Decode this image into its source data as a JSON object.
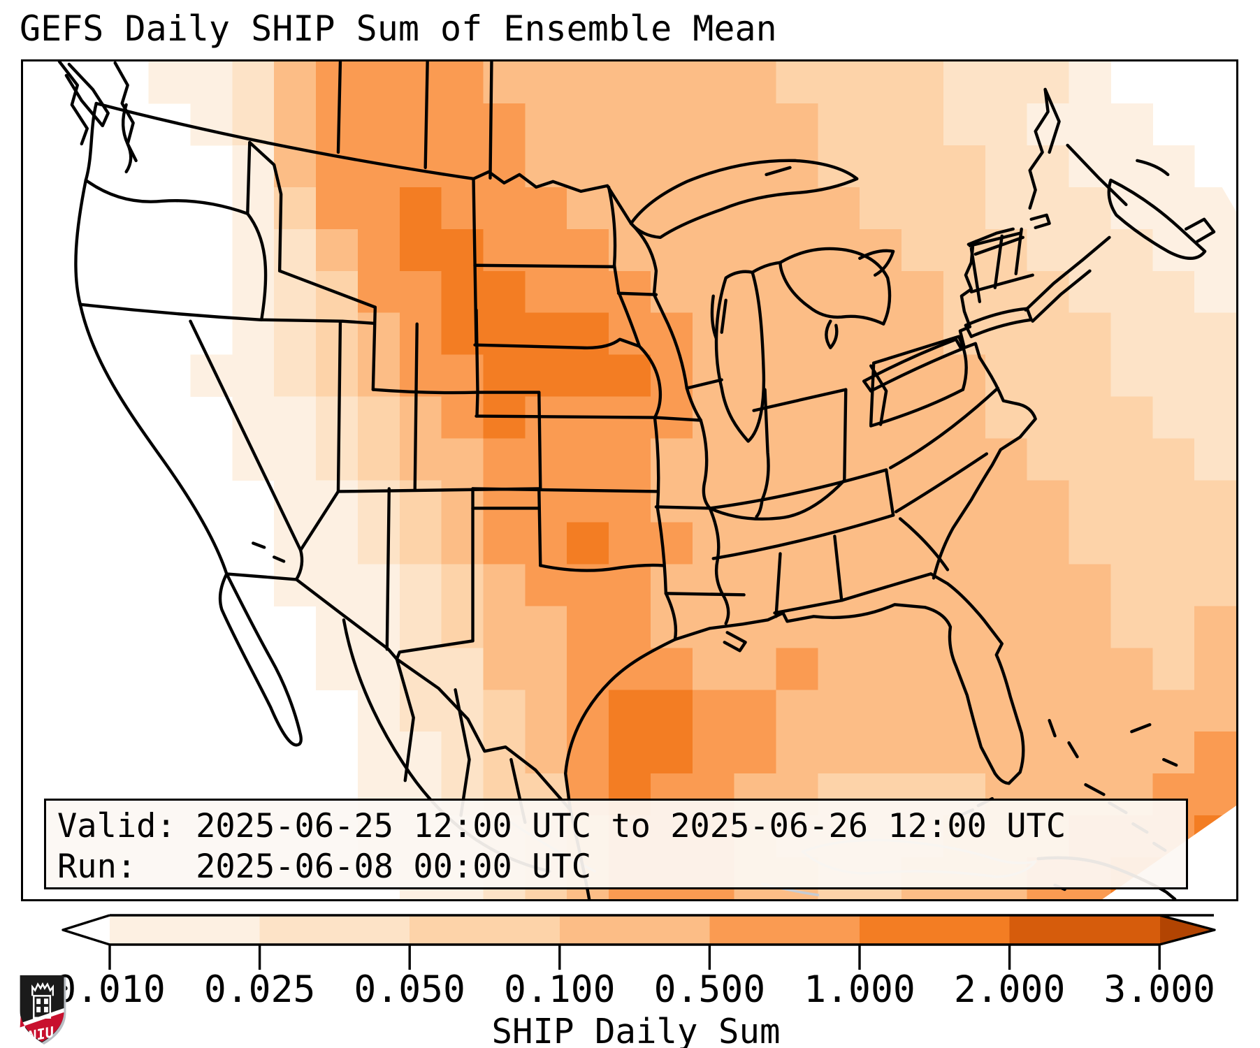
{
  "title": "GEFS Daily SHIP Sum of Ensemble Mean",
  "info_box": {
    "valid_line": "Valid: 2025-06-25 12:00 UTC to 2025-06-26 12:00 UTC",
    "run_line": "Run:   2025-06-08 00:00 UTC"
  },
  "colorbar": {
    "label": "SHIP Daily Sum",
    "tick_labels": [
      "0.010",
      "0.025",
      "0.050",
      "0.100",
      "0.500",
      "1.000",
      "2.000",
      "3.000"
    ],
    "segment_colors": [
      "#fdf0e2",
      "#fde3c7",
      "#fdd3a9",
      "#fcbd86",
      "#fa9b52",
      "#f37d23",
      "#d65c0c"
    ],
    "under_arrow_color": "#ffffff",
    "over_arrow_color": "#b24402",
    "outline_color": "#000000"
  },
  "logo": {
    "text": "NIU",
    "shield_color": "#1b1b1b",
    "band_color": "#c8102e"
  },
  "chart_data": {
    "type": "heatmap",
    "title": "GEFS Daily SHIP Sum of Ensemble Mean",
    "colorbar_label": "SHIP Daily Sum",
    "valid_from": "2025-06-25 12:00 UTC",
    "valid_to": "2025-06-26 12:00 UTC",
    "run": "2025-06-08 00:00 UTC",
    "region": "CONUS",
    "levels": [
      0.01,
      0.025,
      0.05,
      0.1,
      0.5,
      1.0,
      2.0,
      3.0
    ],
    "palette": [
      "#ffffff",
      "#fdf0e2",
      "#fde3c7",
      "#fdd3a9",
      "#fcbd86",
      "#fa9b52",
      "#f37d23",
      "#d65c0c"
    ],
    "over_color": "#b24402",
    "legend_note": "cell codes 0-7: 0 = below 0.010 (white), 1 = 0.010-0.025, 2 = 0.025-0.050, 3 = 0.050-0.100, 4 = 0.100-0.500, 5 = 0.500-1.000, 6 = 1.000-2.000, 7 = 2.000-3.000",
    "grid": {
      "cols": 29,
      "rows": 20,
      "rows_data": [
        "00011245555444444433332221000",
        "00001245555544444443332211100",
        "00000145555544444443333221110",
        "00000135565554444444333222111",
        "00000124566555444444433322211",
        "00000123556655544444443332221",
        "00000123456666554444443333222",
        "00001123455666654444444333222",
        "00000112345655554444444333322",
        "00000112344555544444444433332",
        "00000011234555544444444443333",
        "00000011234556554444444443333",
        "00000011123455544444444444333",
        "00000001123445544444444444334",
        "00000001122445554454444444434",
        "00000000122345665544444444444",
        "00000000112345665544444444445",
        "00000000112335655443333444455",
        "00000000111234555433334445556",
        "00000000011234555443344455667"
      ]
    }
  }
}
